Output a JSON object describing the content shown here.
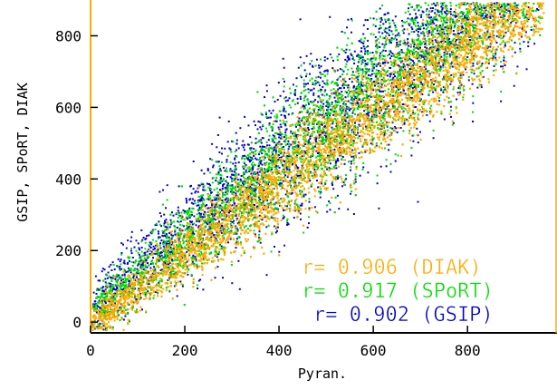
{
  "chart_data": {
    "type": "scatter",
    "title": "",
    "xlabel": "Pyran.",
    "ylabel": "GSIP, SPoRT, DIAK",
    "xlim": [
      0,
      990
    ],
    "ylim": [
      -30,
      900
    ],
    "x_ticks": [
      0,
      200,
      400,
      600,
      800
    ],
    "y_ticks": [
      0,
      200,
      400,
      600,
      800
    ],
    "grid": false,
    "series": [
      {
        "name": "GSIP",
        "color": "#0000cc",
        "r": "0.902",
        "approx_points": 3500
      },
      {
        "name": "SPoRT",
        "color": "#00dd00",
        "r": "0.917",
        "approx_points": 5000
      },
      {
        "name": "DIAK",
        "color": "#ffaa00",
        "r": "0.906",
        "approx_points": 7000
      }
    ],
    "annotations": [
      {
        "text": "r= 0.906 (DIAK)",
        "color": "#ffaa00"
      },
      {
        "text": "r= 0.917 (SPoRT)",
        "color": "#00dd00"
      },
      {
        "text": "r= 0.902 (GSIP)",
        "color": "#0000cc"
      }
    ]
  }
}
